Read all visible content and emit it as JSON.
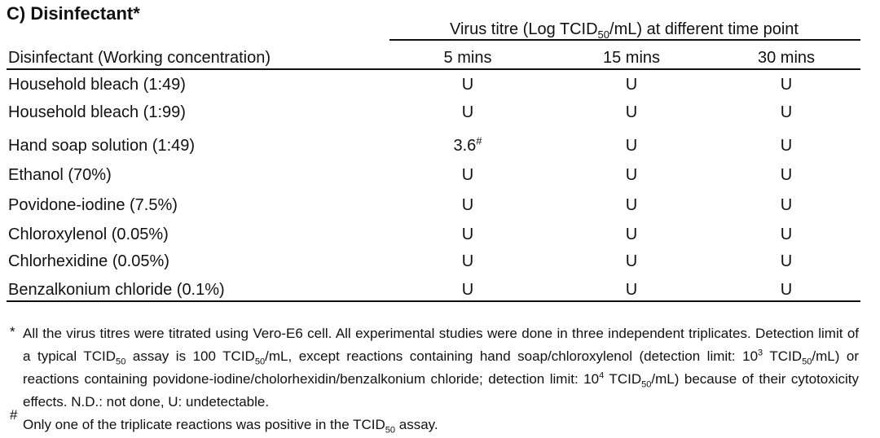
{
  "title": "C) Disinfectant*",
  "table": {
    "group_header": [
      {
        "text": "Virus titre (Log TCID"
      },
      {
        "sub": "50"
      },
      {
        "text": "/mL) at different time point"
      }
    ],
    "columns": [
      "Disinfectant (Working concentration)",
      "5 mins",
      "15 mins",
      "30 mins"
    ],
    "rows": [
      [
        {
          "text": "Household bleach (1:49)"
        },
        {
          "text": "U"
        },
        {
          "text": "U"
        },
        {
          "text": "U"
        }
      ],
      [
        {
          "text": "Household bleach (1:99)"
        },
        {
          "text": "U"
        },
        {
          "text": "U"
        },
        {
          "text": "U"
        }
      ],
      [
        {
          "text": "Hand soap solution (1:49)"
        },
        {
          "text": "3.6",
          "sup": "#"
        },
        {
          "text": "U"
        },
        {
          "text": "U"
        }
      ],
      [
        {
          "text": "Ethanol (70%)"
        },
        {
          "text": "U"
        },
        {
          "text": "U"
        },
        {
          "text": "U"
        }
      ],
      [
        {
          "text": "Povidone-iodine (7.5%)"
        },
        {
          "text": "U"
        },
        {
          "text": "U"
        },
        {
          "text": "U"
        }
      ],
      [
        {
          "text": "Chloroxylenol (0.05%)"
        },
        {
          "text": "U"
        },
        {
          "text": "U"
        },
        {
          "text": "U"
        }
      ],
      [
        {
          "text": "Chlorhexidine (0.05%)"
        },
        {
          "text": "U"
        },
        {
          "text": "U"
        },
        {
          "text": "U"
        }
      ],
      [
        {
          "text": "Benzalkonium chloride (0.1%)"
        },
        {
          "text": "U"
        },
        {
          "text": "U"
        },
        {
          "text": "U"
        }
      ]
    ]
  },
  "footnotes": [
    {
      "marker": "*",
      "parts": [
        {
          "text": "All the virus titres were titrated using Vero-E6 cell. All experimental studies were done in three independent triplicates. Detection limit of a typical TCID"
        },
        {
          "sub": "50"
        },
        {
          "text": " assay is 100 TCID"
        },
        {
          "sub": "50"
        },
        {
          "text": "/mL, except reactions containing hand soap/chloroxylenol (detection limit: 10"
        },
        {
          "sup": "3"
        },
        {
          "text": " TCID"
        },
        {
          "sub": "50"
        },
        {
          "text": "/mL) or reactions containing povidone-iodine/cholorhexidin/benzalkonium chloride; detection limit: 10"
        },
        {
          "sup": "4"
        },
        {
          "text": " TCID"
        },
        {
          "sub": "50"
        },
        {
          "text": "/mL) because of their cytotoxicity effects. N.D.: not done, U: undetectable."
        }
      ]
    },
    {
      "marker": "#",
      "parts": [
        {
          "text": "Only one of the triplicate reactions was positive in the TCID"
        },
        {
          "sub": "50"
        },
        {
          "text": " assay."
        }
      ]
    }
  ]
}
